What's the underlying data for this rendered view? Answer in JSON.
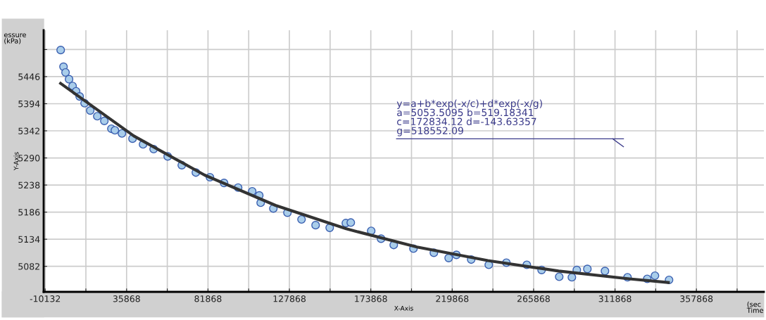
{
  "chart_data": {
    "type": "scatter",
    "xlabel": "X-Axis",
    "ylabel": "Y-Axis",
    "annotations": [
      "y=a+b*exp(-x/c)+d*exp(-x/g)\na=5053.5095 b=519.18341\nc=172834.12 d=-143.63357\ng=518552.09",
      "essure\n(kPa)",
      "(sec\nTime"
    ],
    "series": [
      {
        "color": "#a9cdea",
        "marker": "circle",
        "x": [
          -1378,
          213,
          1370,
          3360,
          5350,
          7340,
          9340,
          12150,
          15330,
          19310,
          23290,
          27270,
          29260,
          33240,
          39210,
          45180,
          51150,
          59100,
          67060,
          75020,
          82980,
          90940,
          98900,
          106860,
          110840,
          111640,
          118800,
          126760,
          134720,
          142680,
          150640,
          159770,
          162557,
          174100,
          179670,
          186830,
          197970,
          209510,
          217870,
          222240,
          230600,
          240540,
          250490,
          262030,
          270390,
          280340,
          287500,
          290280,
          296250,
          306200,
          318930,
          330070,
          334450,
          342410
        ],
        "values": [
          5497,
          5465,
          5454,
          5441,
          5428,
          5418,
          5408,
          5395,
          5381,
          5370,
          5361,
          5346,
          5343,
          5337,
          5327,
          5316,
          5307,
          5293,
          5276,
          5262,
          5253,
          5242,
          5233,
          5226,
          5218,
          5204,
          5193,
          5185,
          5172,
          5161,
          5156,
          5165,
          5166,
          5150,
          5135,
          5123,
          5116,
          5108,
          5098,
          5104,
          5095,
          5085,
          5089,
          5085,
          5075,
          5062,
          5061,
          5075,
          5077,
          5073,
          5061,
          5058,
          5064,
          5056
        ]
      },
      {
        "type": "line",
        "color": "#333333",
        "marker": "none",
        "x": [
          -1400,
          40000,
          80000,
          120000,
          160000,
          200000,
          240000,
          280000,
          320000,
          342000
        ],
        "values": [
          5433,
          5332,
          5257,
          5199,
          5154,
          5119,
          5093,
          5073,
          5058,
          5051
        ]
      }
    ],
    "xlim": [
      -11000,
      396000
    ],
    "xticks": [
      -10132,
      {
        "value": 12868,
        "label": null
      },
      35868,
      {
        "value": 58868,
        "label": null
      },
      81868,
      {
        "value": 104868,
        "label": null
      },
      127868,
      {
        "value": 150868,
        "label": null
      },
      173868,
      {
        "value": 196868,
        "label": null
      },
      219868,
      {
        "value": 242868,
        "label": null
      },
      265868,
      {
        "value": 288868,
        "label": null
      },
      311868,
      {
        "value": 334868,
        "label": null
      },
      357868,
      {
        "value": 380868,
        "label": null
      }
    ],
    "ylim": [
      5033,
      5535
    ],
    "yticks": [
      5082,
      5134,
      5186,
      5238,
      5290,
      5342,
      5394,
      5446,
      {
        "value": 5498,
        "label": null
      }
    ],
    "grid": true,
    "legend": false
  }
}
